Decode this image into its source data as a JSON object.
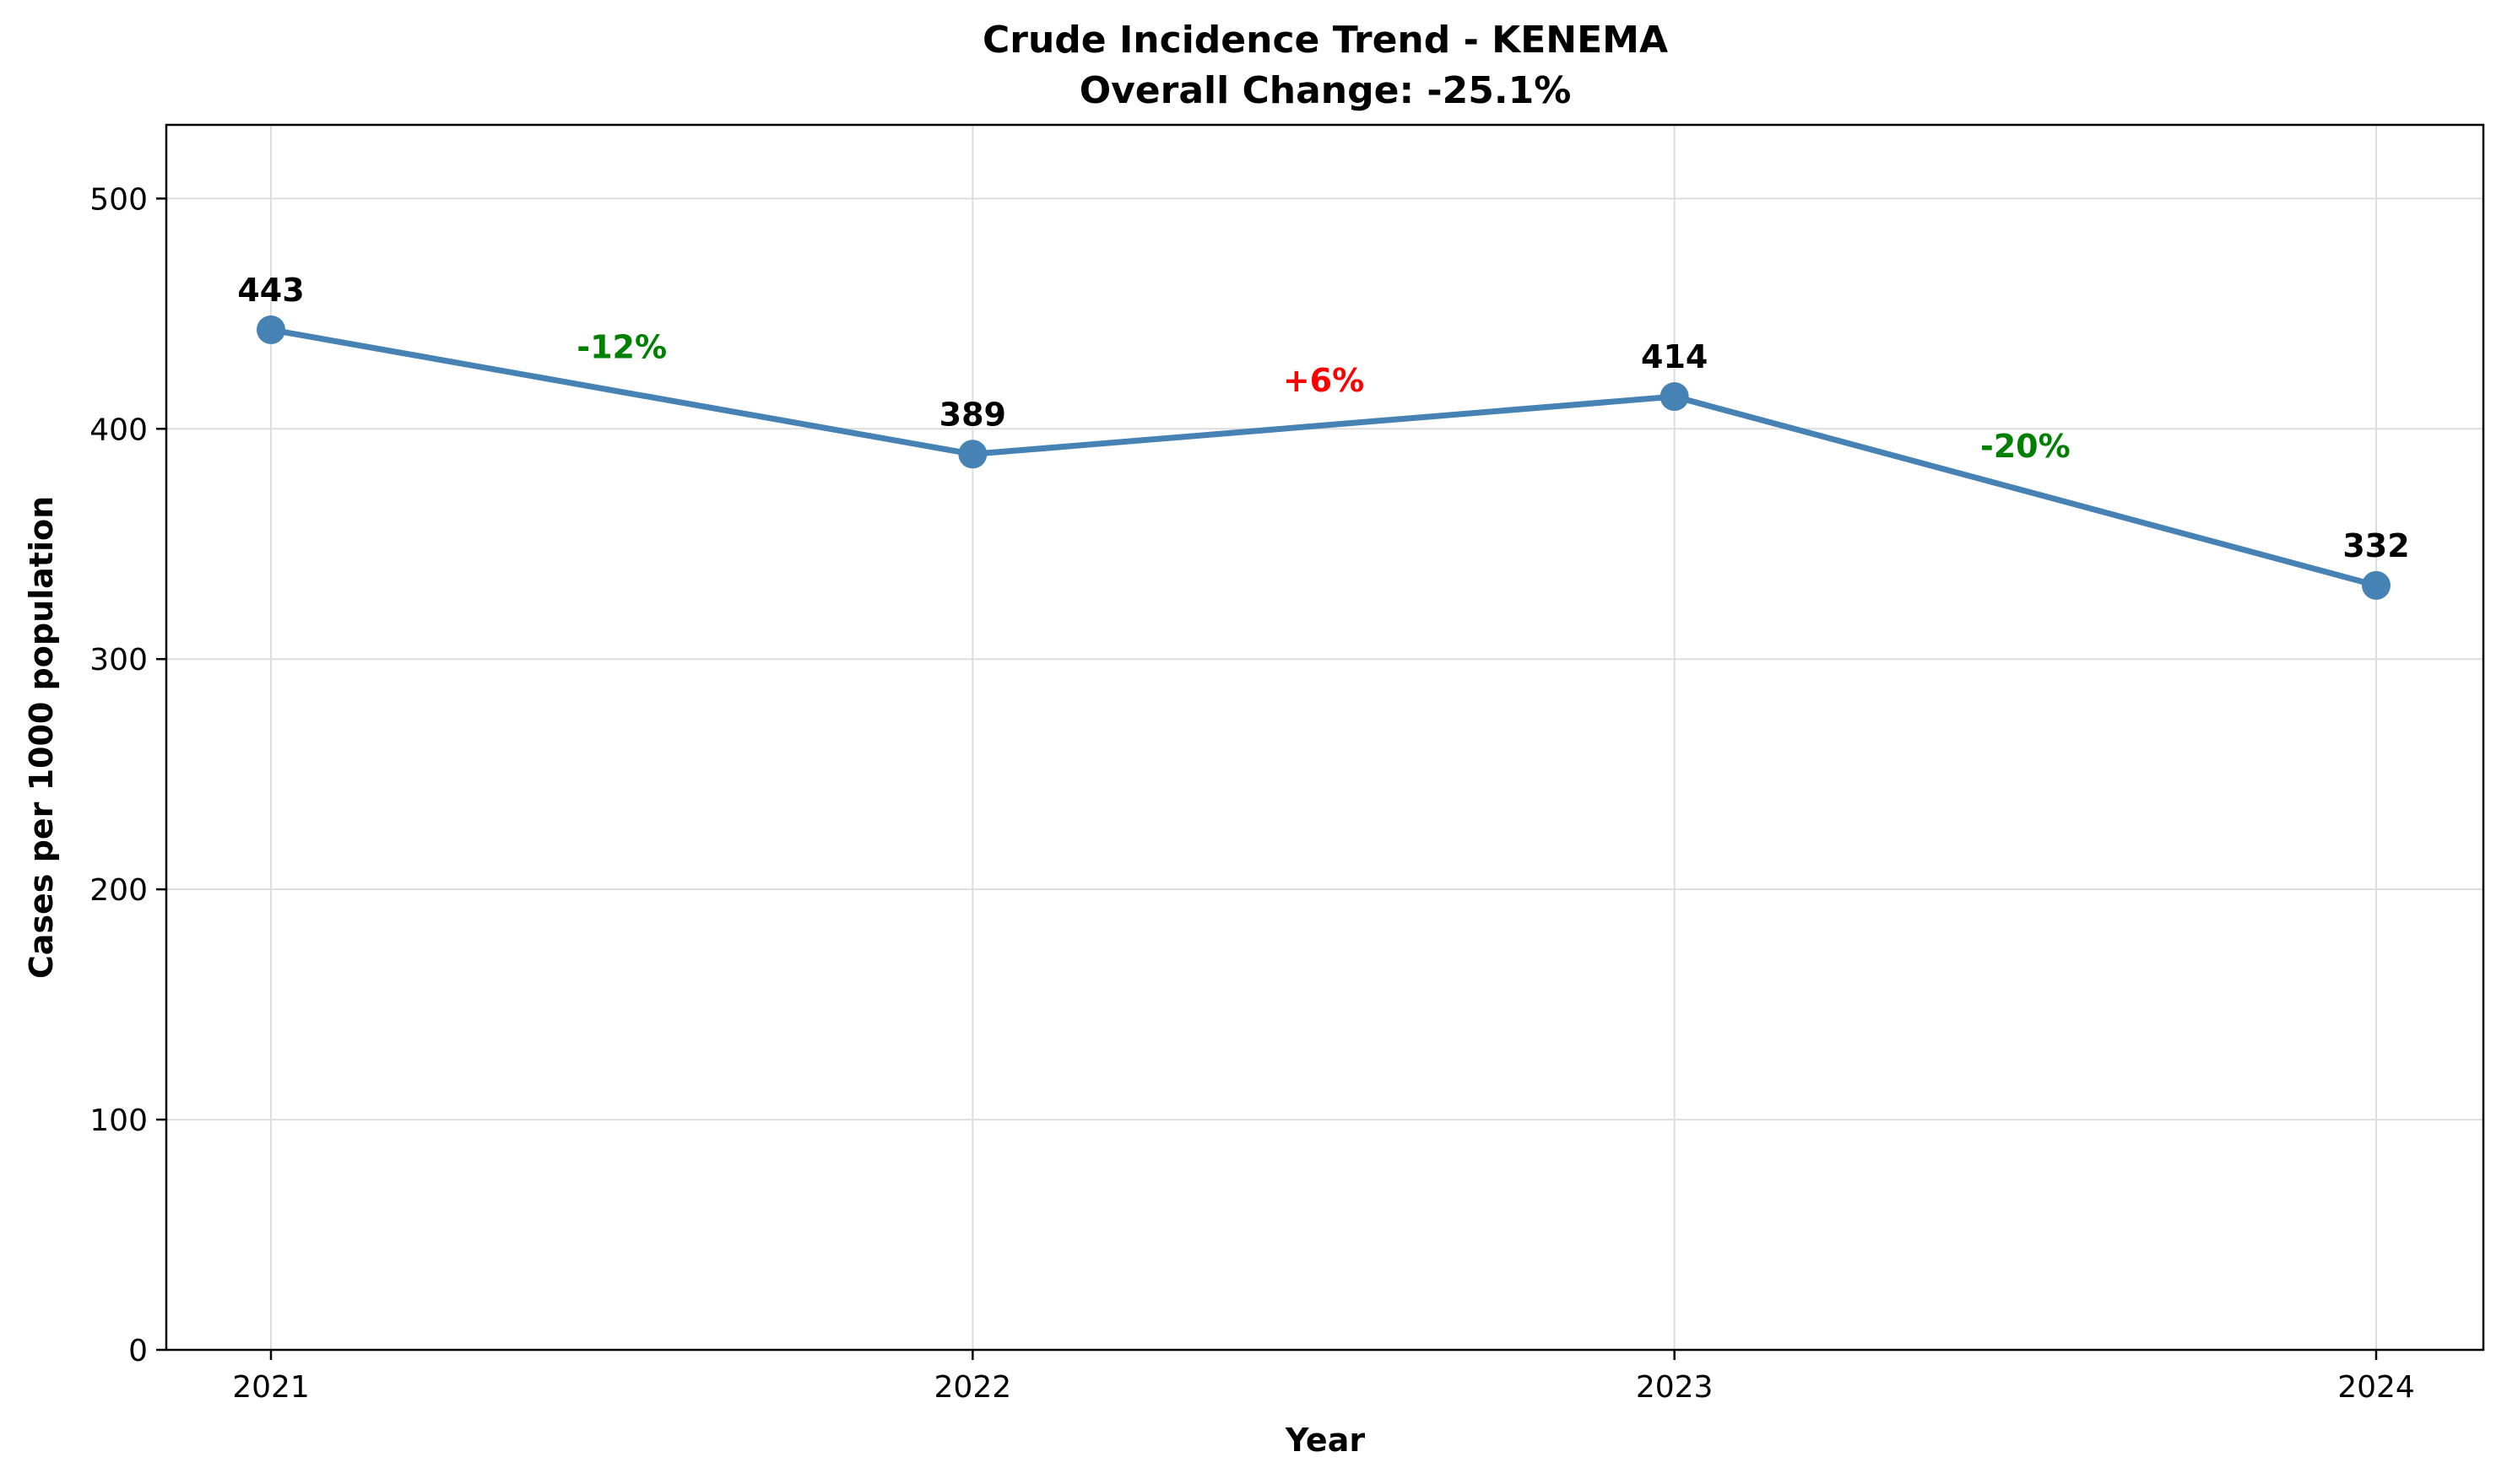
{
  "chart_data": {
    "type": "line",
    "title": "Crude Incidence Trend - KENEMA",
    "subtitle": "Overall Change: -25.1%",
    "xlabel": "Year",
    "ylabel": "Cases per 1000 population",
    "categories": [
      "2021",
      "2022",
      "2023",
      "2024"
    ],
    "series": [
      {
        "values": [
          443,
          389,
          414,
          332
        ],
        "color": "#4682b4"
      }
    ],
    "data_labels": [
      "443",
      "389",
      "414",
      "332"
    ],
    "change_labels": [
      {
        "text": "-12%",
        "color": "#008000"
      },
      {
        "text": "+6%",
        "color": "#ff0000"
      },
      {
        "text": "-20%",
        "color": "#008000"
      }
    ],
    "ylim": [
      0,
      532
    ],
    "yticks": [
      0,
      100,
      200,
      300,
      400,
      500
    ],
    "grid": true,
    "legend": "none"
  }
}
